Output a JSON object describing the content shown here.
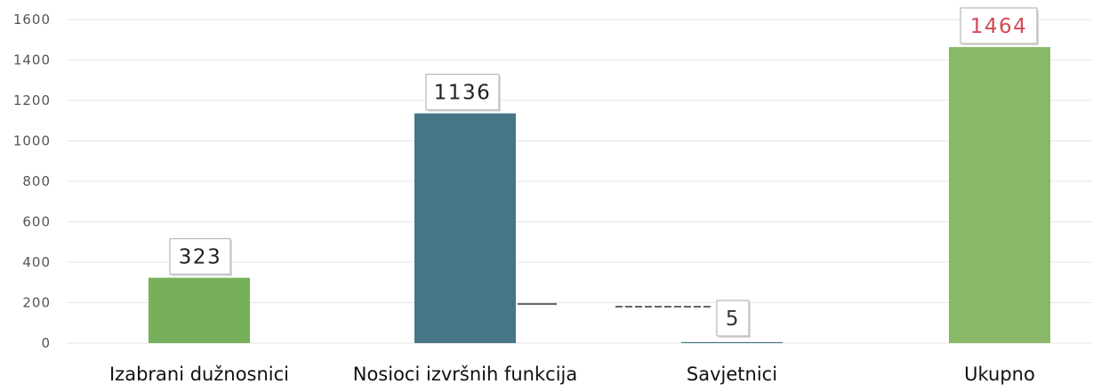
{
  "chart_data": {
    "type": "bar",
    "categories": [
      "Izabrani dužnosnici",
      "Nosioci izvršnih funkcija",
      "Savjetnici",
      "Ukupno"
    ],
    "values": [
      323,
      1136,
      5,
      1464
    ],
    "data_labels": [
      "323",
      "1136",
      "5",
      "1464"
    ],
    "y_ticks": [
      "0",
      "200",
      "400",
      "600",
      "800",
      "1000",
      "1200",
      "1400",
      "1600"
    ],
    "ylim": [
      0,
      1600
    ],
    "grid": true,
    "title": "",
    "xlabel": "",
    "ylabel": "",
    "colors": {
      "bars": [
        "#77b05a",
        "#467586",
        "#467586",
        "#88b868"
      ],
      "labels": [
        "#222222",
        "#222222",
        "#333333",
        "#d24a55"
      ]
    }
  }
}
